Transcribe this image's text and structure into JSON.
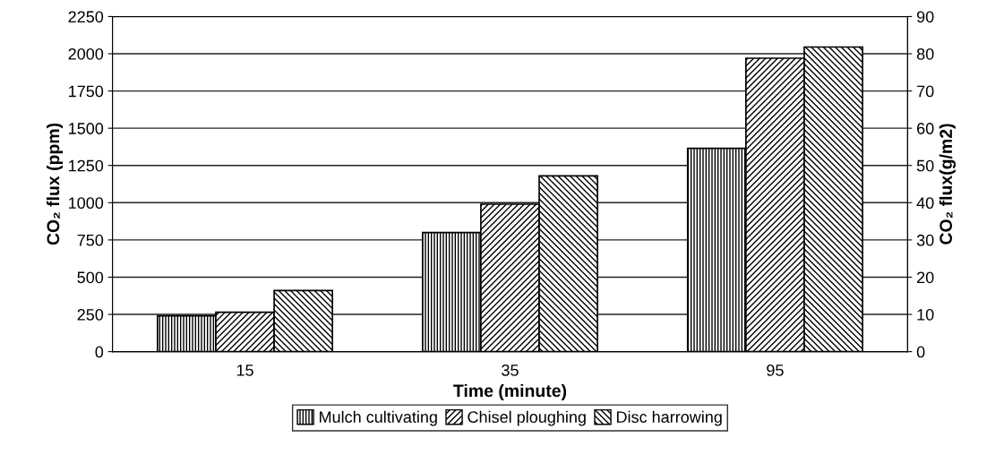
{
  "chart_data": {
    "type": "bar",
    "xlabel": "Time (minute)",
    "ylabel": "CO₂ flux (ppm)",
    "y2label": "CO₂ flux(g/m2)",
    "categories": [
      "15",
      "35",
      "95"
    ],
    "series": [
      {
        "name": "Mulch cultivating",
        "color": "#000000",
        "values": [
          240,
          800,
          1365
        ]
      },
      {
        "name": "Chisel ploughing",
        "color": "#000000",
        "values": [
          265,
          990,
          1970
        ]
      },
      {
        "name": "Disc harrowing",
        "color": "#000000",
        "values": [
          410,
          1180,
          2045
        ]
      }
    ],
    "ylim": [
      0,
      2250
    ],
    "yticks": [
      0,
      250,
      500,
      750,
      1000,
      1250,
      1500,
      1750,
      2000,
      2250
    ],
    "y2lim": [
      0,
      90
    ],
    "y2ticks": [
      0,
      10,
      20,
      30,
      40,
      50,
      60,
      70,
      80,
      90
    ],
    "grid": "y",
    "legend": "bottom"
  }
}
